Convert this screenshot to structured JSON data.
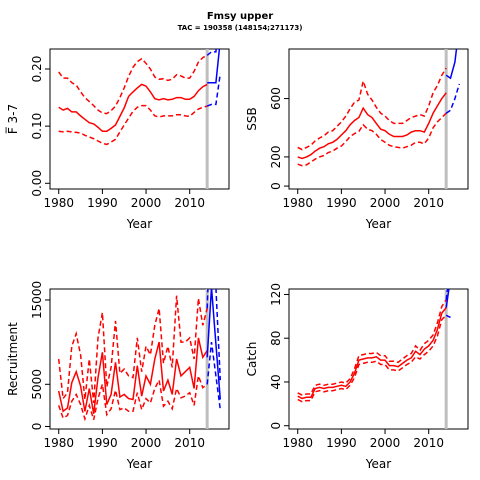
{
  "title": "Fmsy upper",
  "subtitle": "TAC = 190358 (148154;271173)",
  "colors": {
    "hist": "#ff0000",
    "proj": "#0000ff",
    "vline": "#bebebe"
  },
  "chart_data": [
    {
      "type": "line",
      "xlabel": "Year",
      "ylabel": "F̅ 3-7",
      "xlim": [
        1978,
        2019
      ],
      "ylim": [
        -0.01,
        0.235
      ],
      "xticks": [
        1980,
        1990,
        2000,
        2010
      ],
      "yticks": [
        0.0,
        0.1,
        0.2
      ],
      "ytick_labels": [
        "0.00",
        "0.10",
        "0.20"
      ],
      "vline": 2014,
      "x": [
        1980,
        1981,
        1982,
        1983,
        1984,
        1985,
        1986,
        1987,
        1988,
        1989,
        1990,
        1991,
        1992,
        1993,
        1994,
        1995,
        1996,
        1997,
        1998,
        1999,
        2000,
        2001,
        2002,
        2003,
        2004,
        2005,
        2006,
        2007,
        2008,
        2009,
        2010,
        2011,
        2012,
        2013,
        2014
      ],
      "series": [
        {
          "role": "median",
          "values": [
            0.133,
            0.128,
            0.131,
            0.125,
            0.125,
            0.118,
            0.112,
            0.106,
            0.104,
            0.098,
            0.091,
            0.091,
            0.096,
            0.102,
            0.117,
            0.132,
            0.152,
            0.16,
            0.167,
            0.173,
            0.17,
            0.16,
            0.148,
            0.146,
            0.148,
            0.146,
            0.147,
            0.15,
            0.15,
            0.147,
            0.147,
            0.152,
            0.162,
            0.169,
            0.173
          ]
        },
        {
          "role": "lower",
          "values": [
            0.091,
            0.09,
            0.091,
            0.09,
            0.089,
            0.088,
            0.084,
            0.081,
            0.078,
            0.074,
            0.07,
            0.068,
            0.072,
            0.077,
            0.09,
            0.102,
            0.114,
            0.126,
            0.133,
            0.136,
            0.136,
            0.128,
            0.118,
            0.116,
            0.118,
            0.118,
            0.118,
            0.12,
            0.12,
            0.118,
            0.117,
            0.124,
            0.13,
            0.133,
            0.135
          ]
        },
        {
          "role": "upper",
          "values": [
            0.195,
            0.184,
            0.184,
            0.176,
            0.172,
            0.16,
            0.15,
            0.143,
            0.136,
            0.128,
            0.123,
            0.122,
            0.127,
            0.135,
            0.15,
            0.167,
            0.187,
            0.203,
            0.213,
            0.218,
            0.21,
            0.2,
            0.186,
            0.182,
            0.183,
            0.18,
            0.182,
            0.19,
            0.188,
            0.184,
            0.184,
            0.196,
            0.212,
            0.22,
            0.224
          ]
        }
      ],
      "projection": {
        "x": [
          2014,
          2015,
          2016,
          2017
        ],
        "series": [
          {
            "role": "median",
            "values": [
              0.176,
              0.176,
              0.176,
              0.25
            ]
          },
          {
            "role": "lower",
            "values": [
              0.135,
              0.138,
              0.138,
              0.192
            ]
          },
          {
            "role": "upper",
            "values": [
              0.224,
              0.23,
              0.23,
              0.33
            ]
          }
        ]
      }
    },
    {
      "type": "line",
      "xlabel": "Year",
      "ylabel": "SSB",
      "xlim": [
        1978,
        2019
      ],
      "ylim": [
        -20,
        940
      ],
      "xticks": [
        1980,
        1990,
        2000,
        2010
      ],
      "yticks": [
        0,
        200,
        600
      ],
      "ytick_labels": [
        "0",
        "200",
        "600"
      ],
      "vline": 2014,
      "x": [
        1980,
        1981,
        1982,
        1983,
        1984,
        1985,
        1986,
        1987,
        1988,
        1989,
        1990,
        1991,
        1992,
        1993,
        1994,
        1995,
        1996,
        1997,
        1998,
        1999,
        2000,
        2001,
        2002,
        2003,
        2004,
        2005,
        2006,
        2007,
        2008,
        2009,
        2010,
        2011,
        2012,
        2013,
        2014
      ],
      "series": [
        {
          "role": "median",
          "values": [
            200,
            190,
            200,
            215,
            240,
            260,
            270,
            290,
            300,
            320,
            350,
            380,
            420,
            450,
            470,
            535,
            490,
            470,
            430,
            390,
            380,
            355,
            340,
            340,
            340,
            350,
            370,
            380,
            380,
            370,
            430,
            500,
            550,
            600,
            640
          ]
        },
        {
          "role": "lower",
          "values": [
            150,
            140,
            145,
            165,
            185,
            200,
            210,
            230,
            240,
            260,
            275,
            305,
            340,
            360,
            375,
            420,
            390,
            380,
            355,
            320,
            300,
            280,
            270,
            265,
            260,
            270,
            280,
            300,
            300,
            290,
            330,
            400,
            440,
            470,
            500
          ]
        },
        {
          "role": "upper",
          "values": [
            265,
            250,
            265,
            280,
            310,
            330,
            345,
            370,
            380,
            410,
            440,
            480,
            530,
            575,
            590,
            720,
            630,
            590,
            540,
            500,
            480,
            450,
            430,
            430,
            430,
            450,
            470,
            480,
            490,
            480,
            550,
            640,
            690,
            760,
            810
          ]
        }
      ],
      "projection": {
        "x": [
          2014,
          2015,
          2016,
          2017
        ],
        "series": [
          {
            "role": "median",
            "values": [
              760,
              740,
              850,
              1100
            ]
          },
          {
            "role": "lower",
            "values": [
              500,
              520,
              600,
              700
            ]
          },
          {
            "role": "upper",
            "values": [
              1000,
              1050,
              1200,
              1400
            ]
          }
        ]
      }
    },
    {
      "type": "line",
      "xlabel": "Year",
      "ylabel": "Recruitment",
      "xlim": [
        1978,
        2019
      ],
      "ylim": [
        -300,
        16300
      ],
      "xticks": [
        1980,
        1990,
        2000,
        2010
      ],
      "yticks": [
        0,
        5000,
        15000
      ],
      "ytick_labels": [
        "0",
        "5000",
        "15000"
      ],
      "vline": 2014,
      "x": [
        1980,
        1981,
        1982,
        1983,
        1984,
        1985,
        1986,
        1987,
        1988,
        1989,
        1990,
        1991,
        1992,
        1993,
        1994,
        1995,
        1996,
        1997,
        1998,
        1999,
        2000,
        2001,
        2002,
        2003,
        2004,
        2005,
        2006,
        2007,
        2008,
        2009,
        2010,
        2011,
        2012,
        2013,
        2014
      ],
      "series": [
        {
          "role": "median",
          "values": [
            4200,
            1800,
            2200,
            5200,
            6500,
            4800,
            1800,
            4500,
            1500,
            5800,
            8800,
            2600,
            3800,
            7600,
            3500,
            3800,
            3300,
            3200,
            7200,
            3600,
            6000,
            5000,
            8000,
            10000,
            4200,
            5500,
            3800,
            8000,
            6000,
            6500,
            7000,
            4500,
            10500,
            8200,
            9000
          ]
        },
        {
          "role": "lower",
          "values": [
            2500,
            1000,
            1300,
            3000,
            3800,
            2600,
            900,
            2500,
            800,
            3300,
            5000,
            1400,
            2100,
            4300,
            2000,
            2200,
            1800,
            1800,
            4000,
            2000,
            3300,
            2800,
            4500,
            5500,
            2400,
            3000,
            2100,
            4500,
            3400,
            3600,
            4000,
            2500,
            6000,
            4600,
            5000
          ]
        },
        {
          "role": "upper",
          "values": [
            8000,
            3300,
            4000,
            9500,
            11000,
            8500,
            3200,
            8000,
            2800,
            10500,
            13500,
            4700,
            7000,
            12500,
            6300,
            6800,
            6000,
            5800,
            10500,
            6500,
            9500,
            8500,
            12000,
            14000,
            7500,
            9500,
            7000,
            15500,
            10000,
            10000,
            10500,
            8000,
            15200,
            12000,
            14000
          ]
        }
      ],
      "projection": {
        "x": [
          2014,
          2015,
          2016,
          2017
        ],
        "series": [
          {
            "role": "median",
            "values": [
              8200,
              16500,
              9800,
              3200
            ]
          },
          {
            "role": "lower",
            "values": [
              5000,
              10000,
              6000,
              2000
            ]
          },
          {
            "role": "upper",
            "values": [
              14000,
              28000,
              16500,
              5500
            ]
          }
        ]
      }
    },
    {
      "type": "line",
      "xlabel": "Year",
      "ylabel": "Catch",
      "xlim": [
        1978,
        2019
      ],
      "ylim": [
        -3,
        125
      ],
      "xticks": [
        1980,
        1990,
        2000,
        2010
      ],
      "yticks": [
        0,
        40,
        80,
        120
      ],
      "ytick_labels": [
        "0",
        "40",
        "80",
        "120"
      ],
      "vline": 2014,
      "x": [
        1980,
        1981,
        1982,
        1983,
        1984,
        1985,
        1986,
        1987,
        1988,
        1989,
        1990,
        1991,
        1992,
        1993,
        1994,
        1995,
        1996,
        1997,
        1998,
        1999,
        2000,
        2001,
        2002,
        2003,
        2004,
        2005,
        2006,
        2007,
        2008,
        2009,
        2010,
        2011,
        2012,
        2013,
        2014
      ],
      "series": [
        {
          "role": "median",
          "values": [
            27,
            25,
            26,
            26,
            34,
            35,
            34,
            35,
            35,
            36,
            37,
            36,
            40,
            48,
            60,
            61,
            62,
            62,
            63,
            60,
            60,
            55,
            55,
            54,
            57,
            60,
            62,
            68,
            65,
            70,
            73,
            78,
            88,
            103,
            108
          ]
        },
        {
          "role": "lower",
          "values": [
            24,
            22,
            23,
            23,
            31,
            32,
            31,
            32,
            32,
            33,
            34,
            33,
            37,
            44,
            56,
            57,
            58,
            58,
            59,
            56,
            56,
            51,
            51,
            50,
            53,
            56,
            58,
            63,
            61,
            65,
            68,
            73,
            82,
            97,
            101
          ]
        },
        {
          "role": "upper",
          "values": [
            30,
            28,
            29,
            29,
            37,
            38,
            37,
            38,
            38,
            39,
            40,
            39,
            43,
            52,
            64,
            65,
            66,
            66,
            67,
            64,
            64,
            59,
            59,
            58,
            61,
            64,
            66,
            73,
            69,
            75,
            78,
            83,
            94,
            109,
            115
          ]
        }
      ],
      "projection": {
        "x": [
          2014,
          2015
        ],
        "series": [
          {
            "role": "median",
            "values": [
              108,
              135
            ]
          },
          {
            "role": "lower",
            "values": [
              101,
              99
            ]
          },
          {
            "role": "upper",
            "values": [
              115,
              150
            ]
          }
        ]
      }
    }
  ]
}
